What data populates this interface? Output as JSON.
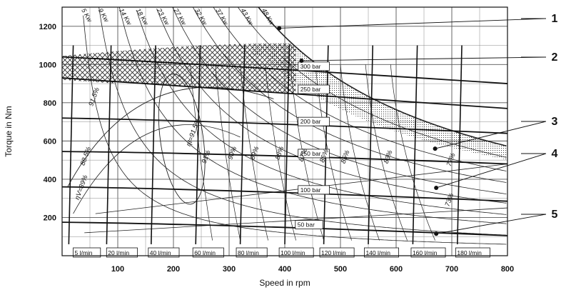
{
  "chart_data": {
    "type": "line",
    "title": "",
    "xlabel": "Speed in rpm",
    "ylabel": "Torque in Nm",
    "xlim": [
      0,
      800
    ],
    "ylim": [
      0,
      1300
    ],
    "x_ticks": [
      100,
      200,
      300,
      400,
      500,
      600,
      700,
      800
    ],
    "y_ticks": [
      200,
      400,
      600,
      800,
      1000,
      1200
    ],
    "grid": true,
    "pressure_lines": [
      {
        "label": "300 bar",
        "y_at_0": 1040,
        "y_at_800": 900,
        "label_x": 415
      },
      {
        "label": "250 bar",
        "y_at_0": 930,
        "y_at_800": 770,
        "label_x": 415
      },
      {
        "label": "200 bar",
        "y_at_0": 720,
        "y_at_800": 640,
        "label_x": 415
      },
      {
        "label": "150 bar",
        "y_at_0": 545,
        "y_at_800": 480,
        "label_x": 415
      },
      {
        "label": "100 bar",
        "y_at_0": 360,
        "y_at_800": 285,
        "label_x": 415
      },
      {
        "label": "50 bar",
        "y_at_0": 175,
        "y_at_800": 105,
        "label_x": 410
      }
    ],
    "flow_lines": [
      {
        "label": "5 l/min",
        "rpm": 12,
        "label_x": 25
      },
      {
        "label": "20 l/min",
        "rpm": 80,
        "label_x": 85
      },
      {
        "label": "40 l/min",
        "rpm": 160,
        "label_x": 160
      },
      {
        "label": "60 l/min",
        "rpm": 240,
        "label_x": 240
      },
      {
        "label": "80 l/min",
        "rpm": 320,
        "label_x": 318
      },
      {
        "label": "100 l/min",
        "rpm": 400,
        "label_x": 395
      },
      {
        "label": "120 l/min",
        "rpm": 470,
        "label_x": 468
      },
      {
        "label": "140 l/min",
        "rpm": 550,
        "label_x": 548
      },
      {
        "label": "160 l/min",
        "rpm": 630,
        "label_x": 632
      },
      {
        "label": "180 l/min",
        "rpm": 710,
        "label_x": 712
      }
    ],
    "power_curves": [
      {
        "label": "5 Kw",
        "kw": 5
      },
      {
        "label": "9 Kw",
        "kw": 9
      },
      {
        "label": "14 Kw",
        "kw": 14
      },
      {
        "label": "18 Kw",
        "kw": 18
      },
      {
        "label": "23 Kw",
        "kw": 23
      },
      {
        "label": "27 Kw",
        "kw": 27
      },
      {
        "label": "32 Kw",
        "kw": 32
      },
      {
        "label": "37 Kw",
        "kw": 37
      },
      {
        "label": "43 Kw",
        "kw": 43
      },
      {
        "label": "48 Kw",
        "kw": 48
      }
    ],
    "efficiency_labels": [
      {
        "label": "91.5%",
        "x": 55,
        "y": 780
      },
      {
        "label": "88.5%",
        "x": 40,
        "y": 470
      },
      {
        "label": "ηV=89%",
        "x": 30,
        "y": 290
      },
      {
        "label": "ηt=91.5%",
        "x": 230,
        "y": 570
      },
      {
        "label": "91%",
        "x": 258,
        "y": 480
      },
      {
        "label": "90%",
        "x": 305,
        "y": 500
      },
      {
        "label": "89%",
        "x": 345,
        "y": 500
      },
      {
        "label": "88%",
        "x": 390,
        "y": 500
      },
      {
        "label": "87%",
        "x": 432,
        "y": 490
      },
      {
        "label": "86%",
        "x": 470,
        "y": 485
      },
      {
        "label": "85%",
        "x": 508,
        "y": 480
      },
      {
        "label": "83%",
        "x": 585,
        "y": 480
      },
      {
        "label": "77%",
        "x": 698,
        "y": 465
      },
      {
        "label": "73%",
        "x": 695,
        "y": 255
      }
    ],
    "zones": [
      {
        "name": "1",
        "type": "max-power-limit"
      },
      {
        "name": "2",
        "type": "intermittent (crosshatch)"
      },
      {
        "name": "3",
        "type": "dotted zone"
      },
      {
        "name": "4",
        "type": "continuous"
      },
      {
        "name": "5",
        "type": "low pressure"
      }
    ],
    "callouts": [
      {
        "num": "1",
        "point_x": 390,
        "point_y": 1190
      },
      {
        "num": "2",
        "point_x": 430,
        "point_y": 1020
      },
      {
        "num": "3",
        "point_x": 670,
        "point_y": 560
      },
      {
        "num": "4",
        "point_x": 672,
        "point_y": 355
      },
      {
        "num": "5",
        "point_x": 672,
        "point_y": 115
      }
    ]
  }
}
